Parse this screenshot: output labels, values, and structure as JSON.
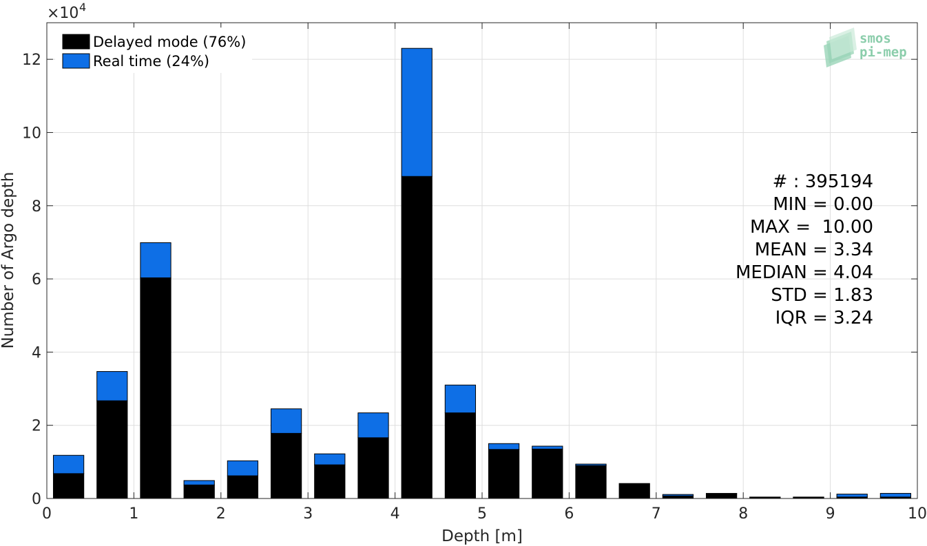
{
  "chart_data": {
    "type": "bar",
    "stacked": true,
    "xlabel": "Depth [m]",
    "ylabel": "Number of Argo depth",
    "y_exponent_label": "×10",
    "y_exponent_power": "4",
    "xlim": [
      0,
      10
    ],
    "ylim": [
      0,
      130000
    ],
    "x_ticks": [
      "0",
      "1",
      "2",
      "3",
      "4",
      "5",
      "6",
      "7",
      "8",
      "9",
      "10"
    ],
    "x_tick_values": [
      0,
      1,
      2,
      3,
      4,
      5,
      6,
      7,
      8,
      9,
      10
    ],
    "y_ticks": [
      "0",
      "2",
      "4",
      "6",
      "8",
      "10",
      "12"
    ],
    "y_tick_values": [
      0,
      20000,
      40000,
      60000,
      80000,
      100000,
      120000
    ],
    "grid": true,
    "legend_position": "top-left",
    "bin_width": 0.5,
    "bin_centers": [
      0.25,
      0.75,
      1.25,
      1.75,
      2.25,
      2.75,
      3.25,
      3.75,
      4.25,
      4.75,
      5.25,
      5.75,
      6.25,
      6.75,
      7.25,
      7.75,
      8.25,
      8.75,
      9.25,
      9.75
    ],
    "series": [
      {
        "name": "Delayed mode (76%)",
        "color": "#000000",
        "values": [
          6800,
          26700,
          60300,
          3700,
          6200,
          17800,
          9200,
          16600,
          88000,
          23400,
          13400,
          13500,
          9000,
          4100,
          700,
          1300,
          300,
          300,
          400,
          400
        ]
      },
      {
        "name": "Real time (24%)",
        "color": "#0e6fe6",
        "values": [
          5000,
          8000,
          9600,
          1200,
          4100,
          6700,
          3000,
          6800,
          35000,
          7600,
          1600,
          800,
          400,
          0,
          400,
          100,
          100,
          100,
          800,
          1000
        ]
      }
    ],
    "annotations": [
      "# : 395194",
      "MIN = 0.00",
      "MAX =  10.00",
      "MEAN = 3.34",
      "MEDIAN = 4.04",
      "STD = 1.83",
      "IQR = 3.24"
    ]
  },
  "logo": {
    "line1": "smos",
    "line2": "pi-mep",
    "color": "#7fc8a2"
  }
}
